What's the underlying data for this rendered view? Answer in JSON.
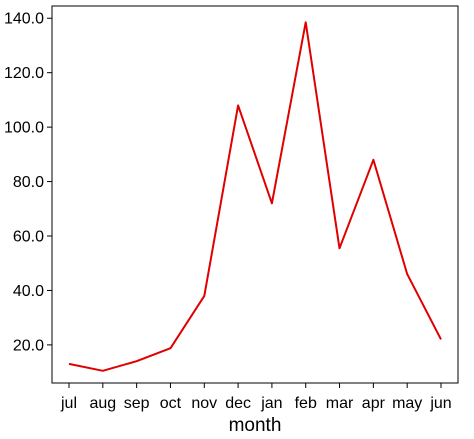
{
  "chart_data": {
    "type": "line",
    "title": "",
    "xlabel": "month",
    "ylabel": "",
    "categories": [
      "jul",
      "aug",
      "sep",
      "oct",
      "nov",
      "dec",
      "jan",
      "feb",
      "mar",
      "apr",
      "may",
      "jun"
    ],
    "series": [
      {
        "values": [
          13.0,
          10.5,
          14.0,
          18.8,
          38.0,
          108.0,
          72.0,
          138.5,
          55.5,
          88.0,
          46.0,
          22.0
        ],
        "color": "#e00000"
      }
    ],
    "yticks": [
      20.0,
      40.0,
      60.0,
      80.0,
      100.0,
      120.0,
      140.0
    ],
    "ytick_labels": [
      "20.0",
      "40.0",
      "60.0",
      "80.0",
      "100.0",
      "120.0",
      "140.0"
    ],
    "ylim": [
      6.0,
      144.5
    ],
    "grid": false,
    "legend": "none"
  }
}
